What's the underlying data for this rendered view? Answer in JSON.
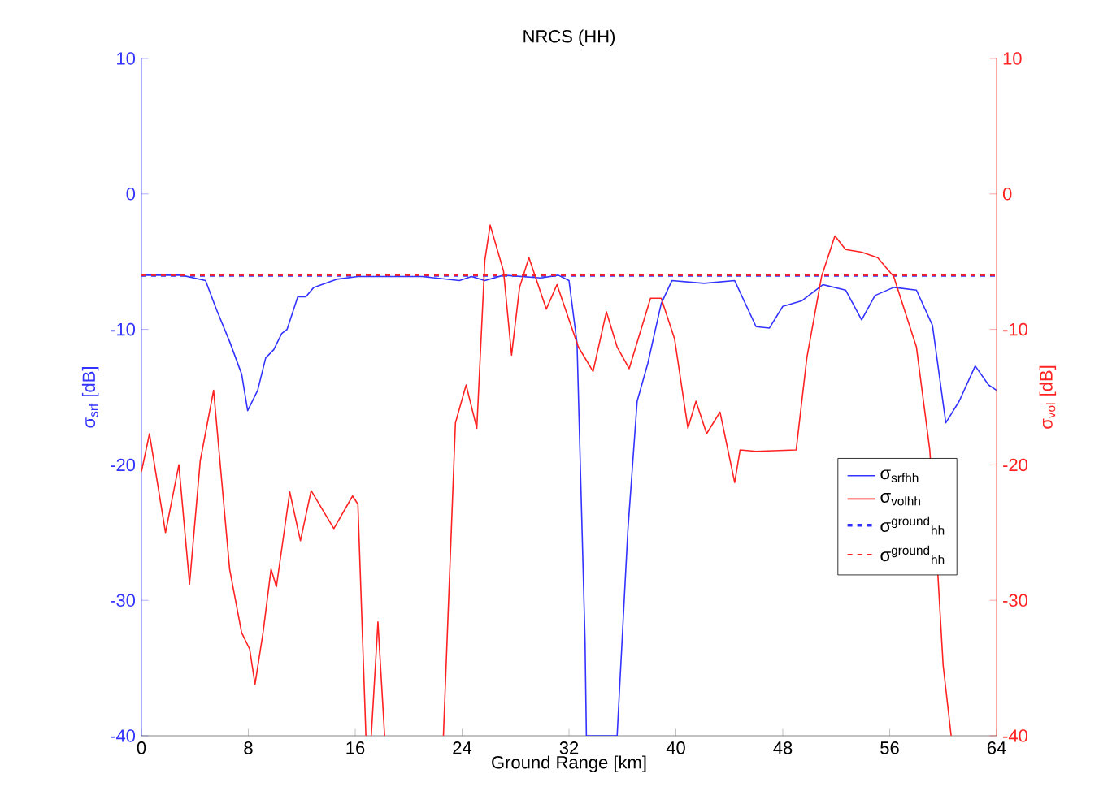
{
  "chart_data": {
    "type": "line",
    "title": "NRCS (HH)",
    "xlabel": "Ground Range [km]",
    "ylabel": "σ$_{srf}$ [dB]",
    "y2label": "σ$_{vol}$ [dB]",
    "xlim": [
      0,
      64
    ],
    "xticks": [
      0,
      8,
      16,
      24,
      32,
      40,
      48,
      56,
      64
    ],
    "ylim": [
      -40,
      10
    ],
    "yticks": [
      -40,
      -30,
      -20,
      -10,
      0,
      10
    ],
    "y2lim": [
      -40,
      10
    ],
    "y2ticks": [
      -40,
      -30,
      -20,
      -10,
      0,
      10
    ],
    "legend": "bottom right",
    "grid": false,
    "series": [
      {
        "name": "σ$_{srfhh}$",
        "color": "#3333ff",
        "line_style": "solid",
        "x": [
          0,
          3,
          4.8,
          5.6,
          6.6,
          7.5,
          7.95,
          8.7,
          9.3,
          9.9,
          10.5,
          10.9,
          11.7,
          12.3,
          12.9,
          14.6,
          16.2,
          21,
          23.8,
          24.7,
          25.7,
          27.1,
          29.9,
          31.2,
          32,
          32.6,
          33.2,
          33.3,
          35.6,
          36.4,
          37.1,
          37.9,
          38.9,
          39.7,
          42.1,
          44.4,
          45.2,
          46,
          47,
          48,
          49.4,
          51,
          52.7,
          53.9,
          54.9,
          56.3,
          58,
          59.2,
          60.2,
          61.2,
          62.4,
          63.4,
          64
        ],
        "values": [
          -6,
          -6,
          -6.4,
          -8.5,
          -10.9,
          -13.3,
          -16,
          -14.5,
          -12.1,
          -11.5,
          -10.3,
          -10,
          -7.6,
          -7.6,
          -6.9,
          -6.3,
          -6.1,
          -6.1,
          -6.4,
          -6.1,
          -6.4,
          -6,
          -6.2,
          -6,
          -6.4,
          -11,
          -33,
          -40,
          -40,
          -24.9,
          -15.3,
          -12.5,
          -8.1,
          -6.4,
          -6.6,
          -6.4,
          -8.1,
          -9.8,
          -9.9,
          -8.3,
          -7.9,
          -6.7,
          -7.1,
          -9.3,
          -7.5,
          -6.9,
          -7.1,
          -9.7,
          -16.9,
          -15.3,
          -12.7,
          -14.1,
          -14.5
        ]
      },
      {
        "name": "σ$_{volhh}$",
        "color": "#ff2222",
        "line_style": "solid",
        "axis": "y2",
        "x": [
          0,
          0.6,
          1.8,
          2.8,
          3.6,
          4.4,
          5.4,
          6.6,
          7.5,
          8.1,
          8.5,
          9.1,
          9.7,
          10.1,
          11.1,
          11.9,
          12.7,
          14.4,
          15.8,
          16.2,
          16.8,
          17,
          17.2,
          17.7,
          18.2,
          20,
          22.6,
          23.5,
          24.3,
          25.1,
          25.7,
          26.1,
          27.1,
          27.7,
          28.3,
          29,
          30.3,
          31.1,
          32.7,
          33.8,
          34.8,
          35.6,
          36.5,
          38.1,
          38.9,
          39.9,
          40.9,
          41.5,
          42.3,
          43.3,
          44.4,
          44.8,
          46,
          49,
          49.8,
          50.9,
          51.9,
          52.7,
          53.9,
          55.1,
          56.3,
          58,
          59,
          59.6,
          60,
          60.6
        ],
        "values": [
          -20.5,
          -17.7,
          -25,
          -20,
          -28.8,
          -19.7,
          -14.5,
          -27.7,
          -32.4,
          -33.6,
          -36.2,
          -32.4,
          -27.7,
          -29,
          -22,
          -25.6,
          -21.9,
          -24.7,
          -22.3,
          -22.9,
          -40,
          null,
          -40,
          -31.6,
          -40,
          null,
          -40,
          -16.9,
          -14.1,
          -17.3,
          -4.9,
          -2.3,
          -5.7,
          -11.9,
          -6.9,
          -4.7,
          -8.5,
          -6.7,
          -11.3,
          -13.1,
          -8.7,
          -11.3,
          -12.9,
          -7.7,
          -7.7,
          -10.7,
          -17.3,
          -15.3,
          -17.7,
          -16.1,
          -21.3,
          -18.9,
          -19,
          -18.9,
          -12.1,
          -6.1,
          -3.1,
          -4.1,
          -4.3,
          -4.7,
          -6.1,
          -11.3,
          -18.9,
          -28,
          -34.8,
          -40
        ]
      },
      {
        "name": "σ$^{ground}$$_{hh}$",
        "color": "#3333ff",
        "line_style": "dashed",
        "x": [
          0,
          64
        ],
        "values": [
          -6,
          -6
        ]
      },
      {
        "name": "σ$^{ground}$$_{hh}$",
        "color": "#ff2222",
        "line_style": "dashed",
        "axis": "y2",
        "x": [
          0,
          64
        ],
        "values": [
          -6,
          -6
        ]
      }
    ]
  }
}
